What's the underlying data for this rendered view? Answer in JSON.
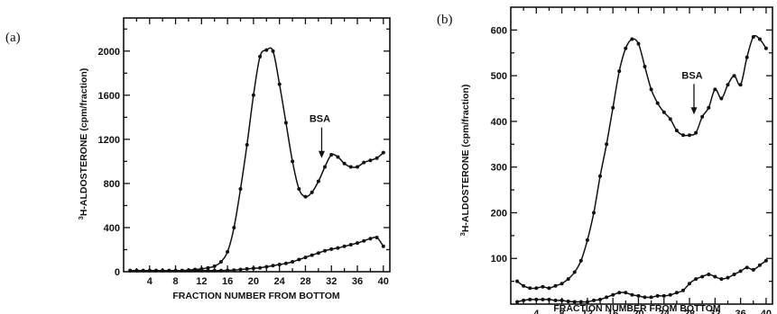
{
  "chart_data": [
    {
      "type": "line",
      "panel_label": "(a)",
      "xlabel": "FRACTION NUMBER FROM BOTTOM",
      "ylabel_sup": "3",
      "ylabel": "H-ALDOSTERONE (cpm/fraction)",
      "xlim": [
        0,
        41
      ],
      "ylim": [
        0,
        2300
      ],
      "xticks": [
        4,
        8,
        12,
        16,
        20,
        24,
        28,
        32,
        36,
        40
      ],
      "yticks": [
        0,
        400,
        800,
        1200,
        1600,
        2000
      ],
      "annotation": {
        "text": "BSA",
        "x": 30.5,
        "y_tip": 1030
      },
      "series": [
        {
          "x": [
            1,
            2,
            3,
            4,
            5,
            6,
            7,
            8,
            9,
            10,
            11,
            12,
            13,
            14,
            15,
            16,
            17,
            18,
            19,
            20,
            21,
            22,
            23,
            24,
            25,
            26,
            27,
            28,
            29,
            30,
            31,
            32,
            33,
            34,
            35,
            36,
            37,
            38,
            39,
            40
          ],
          "values": [
            10,
            10,
            10,
            10,
            10,
            10,
            10,
            10,
            10,
            15,
            20,
            25,
            35,
            50,
            90,
            180,
            400,
            750,
            1150,
            1600,
            1950,
            2010,
            2000,
            1700,
            1350,
            1000,
            750,
            680,
            720,
            820,
            950,
            1060,
            1040,
            980,
            950,
            950,
            990,
            1010,
            1030,
            1080
          ]
        },
        {
          "x": [
            1,
            2,
            3,
            4,
            5,
            6,
            7,
            8,
            9,
            10,
            11,
            12,
            13,
            14,
            15,
            16,
            17,
            18,
            19,
            20,
            21,
            22,
            23,
            24,
            25,
            26,
            27,
            28,
            29,
            30,
            31,
            32,
            33,
            34,
            35,
            36,
            37,
            38,
            39,
            40
          ],
          "values": [
            10,
            10,
            10,
            10,
            10,
            10,
            10,
            10,
            10,
            10,
            10,
            10,
            10,
            10,
            10,
            12,
            15,
            20,
            25,
            30,
            35,
            45,
            55,
            65,
            75,
            90,
            110,
            130,
            150,
            170,
            190,
            205,
            215,
            230,
            245,
            260,
            280,
            300,
            310,
            230
          ]
        }
      ]
    },
    {
      "type": "line",
      "panel_label": "(b)",
      "xlabel": "FRACTION NUMBER FROM BOTTOM",
      "ylabel_sup": "3",
      "ylabel": "H-ALDOSTERONE (cpm/fraction)",
      "xlim": [
        0,
        41
      ],
      "ylim": [
        0,
        650
      ],
      "xticks": [
        4,
        8,
        12,
        16,
        20,
        24,
        28,
        32,
        36,
        40
      ],
      "yticks": [
        100,
        200,
        300,
        400,
        500,
        600
      ],
      "annotation": {
        "text": "BSA",
        "x": 28.7,
        "y_tip": 415
      },
      "series": [
        {
          "x": [
            1,
            2,
            3,
            4,
            5,
            6,
            7,
            8,
            9,
            10,
            11,
            12,
            13,
            14,
            15,
            16,
            17,
            18,
            19,
            20,
            21,
            22,
            23,
            24,
            25,
            26,
            27,
            28,
            29,
            30,
            31,
            32,
            33,
            34,
            35,
            36,
            37,
            38,
            39,
            40
          ],
          "values": [
            50,
            40,
            35,
            35,
            38,
            35,
            40,
            45,
            55,
            70,
            95,
            140,
            200,
            280,
            350,
            430,
            510,
            560,
            580,
            570,
            520,
            470,
            440,
            420,
            405,
            380,
            370,
            370,
            375,
            410,
            430,
            470,
            450,
            480,
            500,
            480,
            540,
            585,
            580,
            560
          ]
        },
        {
          "x": [
            1,
            2,
            3,
            4,
            5,
            6,
            7,
            8,
            9,
            10,
            11,
            12,
            13,
            14,
            15,
            16,
            17,
            18,
            19,
            20,
            21,
            22,
            23,
            24,
            25,
            26,
            27,
            28,
            29,
            30,
            31,
            32,
            33,
            34,
            35,
            36,
            37,
            38,
            39,
            40
          ],
          "values": [
            5,
            8,
            10,
            10,
            10,
            10,
            8,
            8,
            6,
            5,
            5,
            5,
            8,
            10,
            15,
            20,
            25,
            25,
            20,
            18,
            15,
            15,
            18,
            18,
            20,
            25,
            30,
            45,
            55,
            60,
            65,
            60,
            55,
            58,
            65,
            72,
            80,
            75,
            85,
            95
          ]
        }
      ]
    }
  ]
}
